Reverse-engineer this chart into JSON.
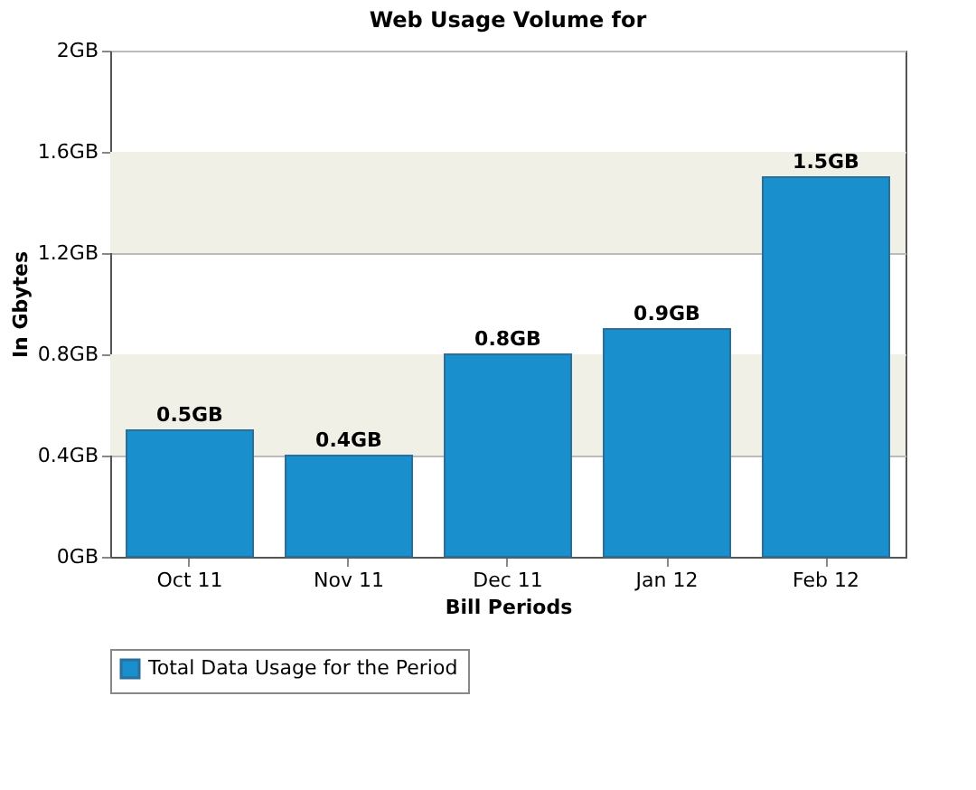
{
  "chart_data": {
    "type": "bar",
    "title": "Web Usage Volume for",
    "xlabel": "Bill Periods",
    "ylabel": "In Gbytes",
    "categories": [
      "Oct 11",
      "Nov 11",
      "Dec 11",
      "Jan 12",
      "Feb 12"
    ],
    "series": [
      {
        "name": "Total Data Usage for the Period",
        "color": "#1a8fce",
        "values": [
          0.5,
          0.4,
          0.8,
          0.9,
          1.5
        ],
        "value_labels": [
          "0.5GB",
          "0.4GB",
          "0.8GB",
          "0.9GB",
          "1.5GB"
        ]
      }
    ],
    "ylim": [
      0,
      2
    ],
    "yticks": [
      {
        "value": 0,
        "label": "0GB"
      },
      {
        "value": 0.4,
        "label": "0.4GB"
      },
      {
        "value": 0.8,
        "label": "0.8GB"
      },
      {
        "value": 1.2,
        "label": "1.2GB"
      },
      {
        "value": 1.6,
        "label": "1.6GB"
      },
      {
        "value": 2,
        "label": "2GB"
      }
    ],
    "bands": [
      {
        "axis": "y",
        "from": 0.4,
        "to": 0.8,
        "color": "#f0f0e6"
      },
      {
        "axis": "y",
        "from": 1.2,
        "to": 1.6,
        "color": "#f0f0e6"
      }
    ],
    "grid": "y",
    "legend": "bottom"
  }
}
